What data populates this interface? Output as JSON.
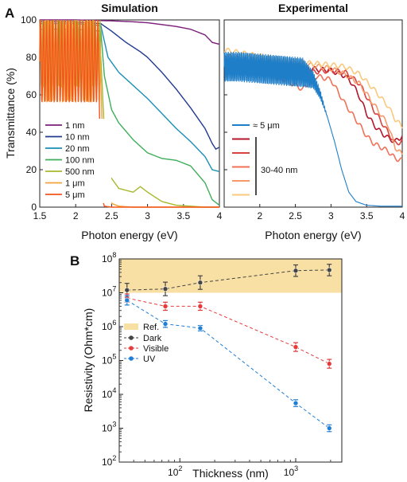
{
  "panel_letters": {
    "a": "A",
    "b": "B"
  },
  "chart_data": [
    {
      "type": "line",
      "title": "Simulation",
      "xlabel": "Photon energy (eV)",
      "ylabel": "Transmittance (%)",
      "xlim": [
        1.5,
        4.0
      ],
      "ylim": [
        0,
        100
      ],
      "xticks": [
        1.5,
        2,
        2.5,
        3,
        3.5,
        4
      ],
      "xtick_labels": [
        "1.5",
        "2",
        "2.5",
        "3",
        "3.5",
        "4"
      ],
      "yticks": [
        0,
        20,
        40,
        60,
        80,
        100
      ],
      "ytick_labels": [
        "0",
        "20",
        "40",
        "60",
        "80",
        "100"
      ],
      "legend_position": "bottom-left",
      "series": [
        {
          "name": "1 nm",
          "color": "#7b1f7a",
          "x": [
            1.5,
            2.0,
            2.5,
            2.8,
            3.0,
            3.2,
            3.4,
            3.6,
            3.8,
            3.9,
            4.0
          ],
          "y": [
            100,
            100,
            99.5,
            99,
            98.5,
            97.5,
            96.5,
            95,
            92,
            88,
            87
          ]
        },
        {
          "name": "10 nm",
          "color": "#1f3a8f",
          "x": [
            1.5,
            2.0,
            2.35,
            2.5,
            2.7,
            2.9,
            3.0,
            3.2,
            3.4,
            3.6,
            3.8,
            3.9,
            3.95,
            4.0
          ],
          "y": [
            99,
            99,
            98,
            94,
            88,
            83,
            80,
            72,
            63,
            53,
            42,
            34,
            31,
            32
          ]
        },
        {
          "name": "20 nm",
          "color": "#1a8fb8",
          "x": [
            1.5,
            2.0,
            2.35,
            2.45,
            2.6,
            2.8,
            3.0,
            3.2,
            3.4,
            3.6,
            3.8,
            3.9,
            4.0
          ],
          "y": [
            98,
            98,
            97,
            80,
            72,
            65,
            58,
            50,
            42,
            35,
            27,
            20,
            19
          ]
        },
        {
          "name": "100 nm",
          "color": "#3fae5a",
          "x": [
            1.5,
            2.0,
            2.35,
            2.4,
            2.5,
            2.6,
            2.8,
            3.0,
            3.2,
            3.4,
            3.6,
            3.8,
            3.9,
            4.0
          ],
          "y": [
            95,
            95,
            94,
            70,
            52,
            45,
            36,
            29,
            26,
            25,
            22,
            13,
            4,
            1
          ]
        },
        {
          "name": "500 nm",
          "color": "#a8b82e",
          "x": [
            1.5,
            2.35,
            2.4,
            2.45,
            2.6,
            2.8,
            2.9,
            3.0,
            3.2,
            3.4,
            3.6,
            3.8,
            4.0
          ],
          "y": [
            80,
            80,
            40,
            18,
            10,
            8,
            11,
            8,
            3,
            1,
            0.5,
            0,
            0
          ]
        },
        {
          "name": "1 μm",
          "color": "#f2a33a",
          "x": [
            1.5,
            2.34,
            2.38,
            2.42,
            2.5,
            2.6,
            2.8,
            3.0,
            4.0
          ],
          "y": [
            78,
            78,
            30,
            8,
            2,
            0.5,
            0,
            0,
            0
          ]
        },
        {
          "name": "5 μm",
          "color": "#f2561d",
          "x": [
            1.5,
            2.32,
            2.34,
            2.36,
            2.4,
            2.5,
            4.0
          ],
          "y": [
            78,
            78,
            30,
            5,
            0.5,
            0,
            0
          ]
        }
      ],
      "oscillation_note": "Curves oscillate strongly between ~55 and ~100 % below 2.35 eV (thin-film interference)."
    },
    {
      "type": "line",
      "title": "Experimental",
      "xlabel": "Photon energy (eV)",
      "ylabel": "",
      "xlim": [
        1.5,
        4.0
      ],
      "ylim": [
        0,
        100
      ],
      "xticks": [
        2,
        2.5,
        3,
        3.5,
        4
      ],
      "xtick_labels": [
        "2",
        "2.5",
        "3",
        "3.5",
        "4"
      ],
      "legend_position": "bottom-left",
      "bracket_label": "30-40 nm",
      "series": [
        {
          "name": "≈ 5 μm",
          "color": "#1f7ec8",
          "x": [
            1.5,
            1.7,
            2.0,
            2.3,
            2.6,
            2.75,
            2.85,
            2.95,
            3.05,
            3.15,
            3.25,
            3.35,
            3.5,
            3.7,
            4.0
          ],
          "y": [
            75,
            75,
            74,
            73,
            72,
            68,
            60,
            48,
            35,
            20,
            8,
            3,
            1,
            0.5,
            0.5
          ]
        },
        {
          "name": "",
          "color": "#b3172c",
          "x": [
            1.5,
            1.8,
            2.1,
            2.4,
            2.7,
            3.0,
            3.2,
            3.3,
            3.4,
            3.5,
            3.6,
            3.7,
            3.8,
            3.9,
            4.0
          ],
          "y": [
            79,
            77,
            76,
            75,
            74,
            73,
            70,
            66,
            59,
            50,
            44,
            40,
            37,
            35,
            38
          ]
        },
        {
          "name": "",
          "color": "#d8433f",
          "x": [
            1.5,
            1.8,
            2.1,
            2.3,
            2.5,
            2.7,
            3.0,
            3.2,
            3.4,
            3.6,
            3.8,
            3.9,
            4.0
          ],
          "y": [
            80,
            76,
            72,
            68,
            70,
            72,
            73,
            72,
            66,
            52,
            40,
            34,
            35
          ]
        },
        {
          "name": "",
          "color": "#f07158",
          "x": [
            1.5,
            1.8,
            2.1,
            2.4,
            2.6,
            2.8,
            3.0,
            3.2,
            3.4,
            3.5,
            3.6,
            3.7,
            3.8,
            3.9,
            4.0
          ],
          "y": [
            76,
            72,
            72,
            67,
            63,
            70,
            68,
            55,
            44,
            38,
            34,
            32,
            30,
            26,
            25
          ]
        },
        {
          "name": "",
          "color": "#f79a6b",
          "x": [
            1.5,
            1.8,
            2.1,
            2.4,
            2.7,
            3.0,
            3.2,
            3.4,
            3.6,
            3.8,
            3.9,
            4.0
          ],
          "y": [
            81,
            79,
            78,
            77,
            76,
            74,
            71,
            66,
            55,
            44,
            32,
            28
          ]
        },
        {
          "name": "",
          "color": "#f9c97e",
          "x": [
            1.5,
            1.8,
            2.1,
            2.4,
            2.7,
            3.0,
            3.2,
            3.4,
            3.6,
            3.8,
            3.9,
            4.0
          ],
          "y": [
            84,
            82,
            80,
            78,
            77,
            76,
            75,
            71,
            63,
            54,
            47,
            43
          ]
        }
      ],
      "oscillation_note": "The ≈ 5 μm curve shows dense interference fringes between ~65 and ~90 % below 2.9 eV."
    },
    {
      "type": "scatter",
      "title": "",
      "xlabel": "Thickness (nm)",
      "ylabel": "Resistivity (Ohm*cm)",
      "xscale": "log",
      "yscale": "log",
      "xlim": [
        30,
        2500
      ],
      "ylim": [
        100,
        100000000
      ],
      "xticks": [
        100,
        1000
      ],
      "xtick_labels": [
        [
          "10",
          "2"
        ],
        [
          "10",
          "3"
        ]
      ],
      "yticks": [
        100,
        1000,
        10000,
        100000,
        1000000,
        10000000,
        100000000
      ],
      "ytick_labels": [
        [
          "10",
          "2"
        ],
        [
          "10",
          "3"
        ],
        [
          "10",
          "4"
        ],
        [
          "10",
          "5"
        ],
        [
          "10",
          "6"
        ],
        [
          "10",
          "7"
        ],
        [
          "10",
          "8"
        ]
      ],
      "reference_band": {
        "label": "Ref.",
        "from": 10000000,
        "to": 100000000,
        "color": "#f8dfa4"
      },
      "legend_position": "left",
      "series": [
        {
          "name": "Dark",
          "color": "#444444",
          "x": [
            35,
            75,
            150,
            1000,
            1950
          ],
          "y": [
            12000000,
            13000000,
            20000000,
            45000000,
            47000000
          ],
          "err": [
            0.2,
            0.2,
            0.2,
            0.17,
            0.17
          ]
        },
        {
          "name": "Visible",
          "color": "#e53b3b",
          "x": [
            35,
            75,
            150,
            1000,
            1950
          ],
          "y": [
            7000000,
            4000000,
            4000000,
            250000,
            80000
          ],
          "err": [
            0.12,
            0.12,
            0.12,
            0.13,
            0.13
          ]
        },
        {
          "name": "UV",
          "color": "#1f7ed6",
          "x": [
            35,
            75,
            150,
            1000,
            1950
          ],
          "y": [
            6000000,
            1200000,
            900000,
            5500,
            1000
          ],
          "err": [
            0.14,
            0.1,
            0.08,
            0.1,
            0.1
          ]
        }
      ]
    }
  ]
}
